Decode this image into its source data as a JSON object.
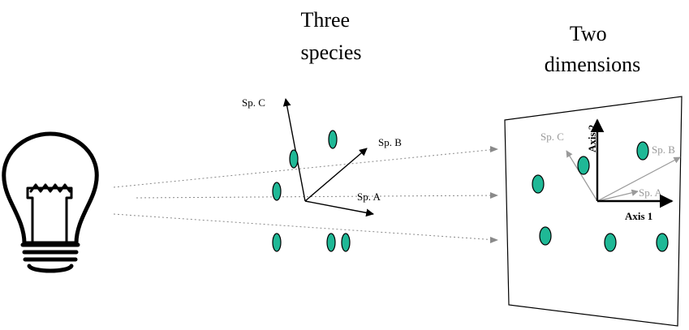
{
  "titles": {
    "three_species": [
      "Three",
      "species"
    ],
    "two_dimensions": [
      "Two",
      "dimensions"
    ]
  },
  "species_axes": {
    "a": "Sp. A",
    "b": "Sp. B",
    "c": "Sp. C"
  },
  "plane": {
    "axis1": "Axis 1",
    "axis2": "Axis 2",
    "proj_a": "Sp. A",
    "proj_b": "Sp. B",
    "proj_c": "Sp. C"
  },
  "colors": {
    "dot_fill": "#1fb896",
    "ray_gray": "#8a8a8a",
    "projected_axis_gray": "#9a9a9a"
  },
  "icons": [
    "light-bulb-icon"
  ]
}
